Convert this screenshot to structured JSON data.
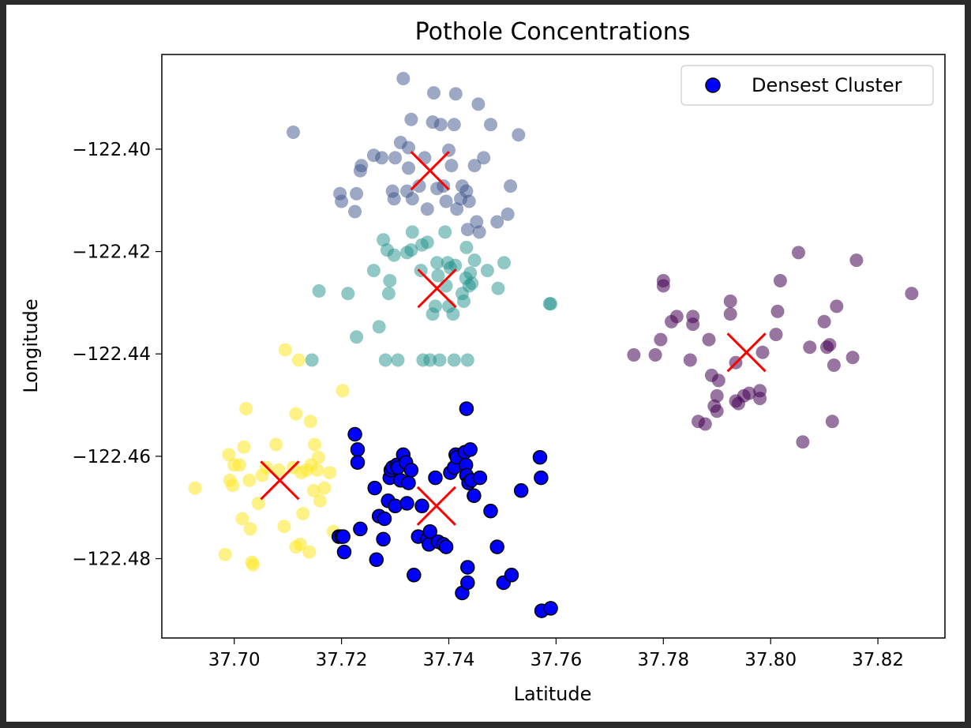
{
  "chart_data": {
    "type": "scatter",
    "title": "Pothole Concentrations",
    "xlabel": "Latitude",
    "ylabel": "Longitude",
    "xlim": [
      37.6865,
      37.8325
    ],
    "ylim": [
      -122.4955,
      -122.3815
    ],
    "x_ticks": [
      37.7,
      37.72,
      37.74,
      37.76,
      37.78,
      37.8,
      37.82
    ],
    "x_tick_labels": [
      "37.70",
      "37.72",
      "37.74",
      "37.76",
      "37.78",
      "37.80",
      "37.82"
    ],
    "y_ticks": [
      -122.4,
      -122.42,
      -122.44,
      -122.46,
      -122.48
    ],
    "y_tick_labels": [
      "−122.40",
      "−122.42",
      "−122.44",
      "−122.46",
      "−122.48"
    ],
    "grid": false,
    "legend": {
      "location": "top-right",
      "entries": [
        "Densest Cluster"
      ]
    },
    "series": [
      {
        "color": "#440154",
        "opacity": 0.55,
        "points": [
          [
            37.7745,
            -122.4402
          ],
          [
            37.7785,
            -122.4402
          ],
          [
            37.7795,
            -122.4372
          ],
          [
            37.78,
            -122.4257
          ],
          [
            37.78,
            -122.4267
          ],
          [
            37.7815,
            -122.4337
          ],
          [
            37.7825,
            -122.4327
          ],
          [
            37.785,
            -122.4412
          ],
          [
            37.7855,
            -122.4327
          ],
          [
            37.7855,
            -122.4342
          ],
          [
            37.7865,
            -122.4532
          ],
          [
            37.7878,
            -122.4537
          ],
          [
            37.7885,
            -122.4372
          ],
          [
            37.789,
            -122.4442
          ],
          [
            37.7895,
            -122.4502
          ],
          [
            37.79,
            -122.4482
          ],
          [
            37.79,
            -122.4512
          ],
          [
            37.7903,
            -122.4452
          ],
          [
            37.7925,
            -122.4297
          ],
          [
            37.7925,
            -122.4322
          ],
          [
            37.7935,
            -122.4417
          ],
          [
            37.7935,
            -122.4492
          ],
          [
            37.794,
            -122.4497
          ],
          [
            37.795,
            -122.4482
          ],
          [
            37.796,
            -122.4477
          ],
          [
            37.798,
            -122.4472
          ],
          [
            37.798,
            -122.4487
          ],
          [
            37.7985,
            -122.4397
          ],
          [
            37.801,
            -122.4362
          ],
          [
            37.8013,
            -122.4317
          ],
          [
            37.8018,
            -122.4257
          ],
          [
            37.8052,
            -122.4202
          ],
          [
            37.806,
            -122.4572
          ],
          [
            37.8073,
            -122.4387
          ],
          [
            37.81,
            -122.4337
          ],
          [
            37.8105,
            -122.4387
          ],
          [
            37.811,
            -122.4382
          ],
          [
            37.8115,
            -122.4532
          ],
          [
            37.8118,
            -122.4422
          ],
          [
            37.8123,
            -122.4307
          ],
          [
            37.8153,
            -122.4407
          ],
          [
            37.816,
            -122.4217
          ],
          [
            37.8263,
            -122.4282
          ]
        ]
      },
      {
        "color": "#3b528b",
        "opacity": 0.5,
        "points": [
          [
            37.711,
            -122.3967
          ],
          [
            37.7197,
            -122.4087
          ],
          [
            37.72,
            -122.4102
          ],
          [
            37.7225,
            -122.4122
          ],
          [
            37.7228,
            -122.4087
          ],
          [
            37.7235,
            -122.4042
          ],
          [
            37.7237,
            -122.4032
          ],
          [
            37.726,
            -122.4012
          ],
          [
            37.7275,
            -122.4017
          ],
          [
            37.7295,
            -122.4082
          ],
          [
            37.7298,
            -122.4097
          ],
          [
            37.73,
            -122.4017
          ],
          [
            37.731,
            -122.3987
          ],
          [
            37.7315,
            -122.3862
          ],
          [
            37.7322,
            -122.4082
          ],
          [
            37.7325,
            -122.4037
          ],
          [
            37.7325,
            -122.3997
          ],
          [
            37.733,
            -122.3942
          ],
          [
            37.7332,
            -122.4097
          ],
          [
            37.7345,
            -122.4072
          ],
          [
            37.7355,
            -122.4017
          ],
          [
            37.736,
            -122.4117
          ],
          [
            37.737,
            -122.3947
          ],
          [
            37.7372,
            -122.389
          ],
          [
            37.7378,
            -122.4077
          ],
          [
            37.7385,
            -122.3952
          ],
          [
            37.739,
            -122.4072
          ],
          [
            37.7395,
            -122.4102
          ],
          [
            37.74,
            -122.4002
          ],
          [
            37.7405,
            -122.4032
          ],
          [
            37.741,
            -122.3952
          ],
          [
            37.7413,
            -122.3892
          ],
          [
            37.7415,
            -122.4117
          ],
          [
            37.7422,
            -122.4097
          ],
          [
            37.7425,
            -122.4072
          ],
          [
            37.7433,
            -122.4082
          ],
          [
            37.7435,
            -122.4157
          ],
          [
            37.7438,
            -122.4102
          ],
          [
            37.7448,
            -122.4032
          ],
          [
            37.7452,
            -122.4142
          ],
          [
            37.7455,
            -122.3912
          ],
          [
            37.7457,
            -122.4162
          ],
          [
            37.7465,
            -122.4017
          ],
          [
            37.7478,
            -122.3952
          ],
          [
            37.749,
            -122.4142
          ],
          [
            37.751,
            -122.4127
          ],
          [
            37.7515,
            -122.4072
          ],
          [
            37.753,
            -122.3972
          ]
        ]
      },
      {
        "color": "#21918c",
        "opacity": 0.5,
        "points": [
          [
            37.7145,
            -122.4412
          ],
          [
            37.7158,
            -122.4277
          ],
          [
            37.7212,
            -122.4282
          ],
          [
            37.7228,
            -122.4367
          ],
          [
            37.726,
            -122.4237
          ],
          [
            37.727,
            -122.4347
          ],
          [
            37.7278,
            -122.4177
          ],
          [
            37.7282,
            -122.4412
          ],
          [
            37.7285,
            -122.4197
          ],
          [
            37.7288,
            -122.4282
          ],
          [
            37.729,
            -122.4257
          ],
          [
            37.7298,
            -122.4207
          ],
          [
            37.7305,
            -122.4412
          ],
          [
            37.7322,
            -122.4202
          ],
          [
            37.733,
            -122.4197
          ],
          [
            37.7332,
            -122.4162
          ],
          [
            37.7348,
            -122.4237
          ],
          [
            37.735,
            -122.4187
          ],
          [
            37.7352,
            -122.4412
          ],
          [
            37.736,
            -122.4182
          ],
          [
            37.7365,
            -122.4412
          ],
          [
            37.737,
            -122.4322
          ],
          [
            37.7375,
            -122.4307
          ],
          [
            37.7378,
            -122.4222
          ],
          [
            37.738,
            -122.4247
          ],
          [
            37.7383,
            -122.4412
          ],
          [
            37.7393,
            -122.4162
          ],
          [
            37.7395,
            -122.4267
          ],
          [
            37.7398,
            -122.4222
          ],
          [
            37.74,
            -122.4307
          ],
          [
            37.7403,
            -122.4232
          ],
          [
            37.7408,
            -122.4322
          ],
          [
            37.741,
            -122.4412
          ],
          [
            37.7412,
            -122.4227
          ],
          [
            37.7425,
            -122.4282
          ],
          [
            37.7428,
            -122.4297
          ],
          [
            37.7432,
            -122.4252
          ],
          [
            37.7433,
            -122.4192
          ],
          [
            37.7435,
            -122.4412
          ],
          [
            37.7438,
            -122.4267
          ],
          [
            37.744,
            -122.4242
          ],
          [
            37.7443,
            -122.4262
          ],
          [
            37.7448,
            -122.4217
          ],
          [
            37.7472,
            -122.4237
          ],
          [
            37.7492,
            -122.4272
          ],
          [
            37.7503,
            -122.4222
          ],
          [
            37.7588,
            -122.4302
          ],
          [
            37.759,
            -122.4302
          ]
        ]
      },
      {
        "color": "#fde725",
        "opacity": 0.55,
        "points": [
          [
            37.6927,
            -122.4662
          ],
          [
            37.6983,
            -122.4792
          ],
          [
            37.699,
            -122.4597
          ],
          [
            37.6992,
            -122.4647
          ],
          [
            37.6997,
            -122.4657
          ],
          [
            37.7,
            -122.4617
          ],
          [
            37.701,
            -122.4617
          ],
          [
            37.7015,
            -122.4722
          ],
          [
            37.7018,
            -122.4582
          ],
          [
            37.7022,
            -122.4507
          ],
          [
            37.7028,
            -122.4647
          ],
          [
            37.703,
            -122.4742
          ],
          [
            37.7033,
            -122.4807
          ],
          [
            37.7035,
            -122.4812
          ],
          [
            37.7045,
            -122.4692
          ],
          [
            37.7052,
            -122.4637
          ],
          [
            37.706,
            -122.4622
          ],
          [
            37.7078,
            -122.4577
          ],
          [
            37.7083,
            -122.4627
          ],
          [
            37.7093,
            -122.4737
          ],
          [
            37.7095,
            -122.4392
          ],
          [
            37.711,
            -122.4622
          ],
          [
            37.7115,
            -122.4777
          ],
          [
            37.7115,
            -122.4517
          ],
          [
            37.712,
            -122.4412
          ],
          [
            37.7123,
            -122.4772
          ],
          [
            37.7125,
            -122.4632
          ],
          [
            37.7128,
            -122.4712
          ],
          [
            37.7135,
            -122.4627
          ],
          [
            37.714,
            -122.4787
          ],
          [
            37.7142,
            -122.4532
          ],
          [
            37.7143,
            -122.4617
          ],
          [
            37.7148,
            -122.4667
          ],
          [
            37.715,
            -122.4577
          ],
          [
            37.7155,
            -122.4627
          ],
          [
            37.7157,
            -122.4602
          ],
          [
            37.716,
            -122.4687
          ],
          [
            37.7168,
            -122.4662
          ],
          [
            37.7178,
            -122.4632
          ],
          [
            37.7185,
            -122.4747
          ],
          [
            37.7202,
            -122.4472
          ]
        ]
      },
      {
        "color": "#0000ff",
        "opacity": 1,
        "outline": "#000000",
        "points": [
          [
            37.7195,
            -122.4757
          ],
          [
            37.72,
            -122.4757
          ],
          [
            37.7203,
            -122.4757
          ],
          [
            37.7205,
            -122.4787
          ],
          [
            37.7225,
            -122.4557
          ],
          [
            37.723,
            -122.4587
          ],
          [
            37.723,
            -122.4612
          ],
          [
            37.7235,
            -122.4742
          ],
          [
            37.7262,
            -122.4662
          ],
          [
            37.7265,
            -122.4802
          ],
          [
            37.727,
            -122.4717
          ],
          [
            37.7278,
            -122.4762
          ],
          [
            37.728,
            -122.4722
          ],
          [
            37.7287,
            -122.4687
          ],
          [
            37.729,
            -122.4642
          ],
          [
            37.7292,
            -122.4627
          ],
          [
            37.7295,
            -122.4622
          ],
          [
            37.73,
            -122.4697
          ],
          [
            37.7303,
            -122.4617
          ],
          [
            37.7305,
            -122.4622
          ],
          [
            37.731,
            -122.4647
          ],
          [
            37.7315,
            -122.4597
          ],
          [
            37.732,
            -122.4612
          ],
          [
            37.7322,
            -122.4692
          ],
          [
            37.7325,
            -122.4652
          ],
          [
            37.733,
            -122.4627
          ],
          [
            37.7335,
            -122.4832
          ],
          [
            37.7343,
            -122.4757
          ],
          [
            37.735,
            -122.4697
          ],
          [
            37.736,
            -122.4762
          ],
          [
            37.7363,
            -122.4772
          ],
          [
            37.7365,
            -122.4747
          ],
          [
            37.7375,
            -122.4642
          ],
          [
            37.738,
            -122.4767
          ],
          [
            37.739,
            -122.4772
          ],
          [
            37.7395,
            -122.4777
          ],
          [
            37.7403,
            -122.4632
          ],
          [
            37.741,
            -122.4622
          ],
          [
            37.7413,
            -122.4597
          ],
          [
            37.7415,
            -122.4602
          ],
          [
            37.7425,
            -122.4867
          ],
          [
            37.743,
            -122.4592
          ],
          [
            37.7432,
            -122.4617
          ],
          [
            37.7433,
            -122.4507
          ],
          [
            37.7433,
            -122.4637
          ],
          [
            37.7435,
            -122.4817
          ],
          [
            37.7435,
            -122.4847
          ],
          [
            37.7437,
            -122.4652
          ],
          [
            37.744,
            -122.4587
          ],
          [
            37.7442,
            -122.4647
          ],
          [
            37.7447,
            -122.4677
          ],
          [
            37.7458,
            -122.4642
          ],
          [
            37.7478,
            -122.4707
          ],
          [
            37.749,
            -122.4777
          ],
          [
            37.7502,
            -122.4847
          ],
          [
            37.7517,
            -122.4832
          ],
          [
            37.7535,
            -122.4667
          ],
          [
            37.757,
            -122.4602
          ],
          [
            37.7572,
            -122.4642
          ],
          [
            37.7573,
            -122.4902
          ],
          [
            37.759,
            -122.4897
          ]
        ]
      }
    ],
    "centroids": {
      "marker": "x",
      "color": "#ff0000",
      "points": [
        [
          37.7365,
          -122.4042
        ],
        [
          37.7378,
          -122.4272
        ],
        [
          37.7955,
          -122.4397
        ],
        [
          37.7085,
          -122.4647
        ],
        [
          37.7377,
          -122.4697
        ]
      ]
    }
  }
}
